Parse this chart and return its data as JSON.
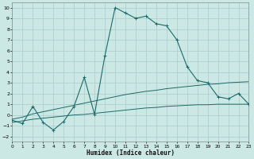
{
  "xlabel": "Humidex (Indice chaleur)",
  "bg_color": "#cce8e4",
  "grid_color": "#aacccc",
  "line_color": "#1a6b6b",
  "xlim": [
    0,
    23
  ],
  "ylim": [
    -2.5,
    10.5
  ],
  "xticks": [
    0,
    1,
    2,
    3,
    4,
    5,
    6,
    7,
    8,
    9,
    10,
    11,
    12,
    13,
    14,
    15,
    16,
    17,
    18,
    19,
    20,
    21,
    22,
    23
  ],
  "yticks": [
    -2,
    -1,
    0,
    1,
    2,
    3,
    4,
    5,
    6,
    7,
    8,
    9,
    10
  ],
  "curve1_x": [
    0,
    1,
    2,
    3,
    4,
    5,
    6,
    7,
    8,
    9,
    10,
    11,
    12,
    13,
    14,
    15,
    16,
    17,
    18,
    19,
    20,
    21,
    22,
    23
  ],
  "curve1_y": [
    -0.5,
    -0.8,
    0.8,
    -0.7,
    -1.4,
    -0.6,
    0.8,
    3.5,
    0.05,
    5.5,
    10.0,
    9.5,
    9.0,
    9.2,
    8.5,
    8.3,
    7.0,
    4.5,
    3.2,
    3.0,
    1.7,
    1.5,
    2.0,
    1.0
  ],
  "curve2_x": [
    0,
    1,
    2,
    3,
    4,
    5,
    6,
    7,
    8,
    9,
    10,
    11,
    12,
    13,
    14,
    15,
    16,
    17,
    18,
    19,
    20,
    21,
    22,
    23
  ],
  "curve2_y": [
    -0.4,
    -0.2,
    0.1,
    0.3,
    0.5,
    0.7,
    0.9,
    1.1,
    1.3,
    1.5,
    1.7,
    1.9,
    2.05,
    2.2,
    2.3,
    2.45,
    2.55,
    2.65,
    2.75,
    2.85,
    2.9,
    3.0,
    3.05,
    3.1
  ],
  "curve3_x": [
    0,
    1,
    2,
    3,
    4,
    5,
    6,
    7,
    8,
    9,
    10,
    11,
    12,
    13,
    14,
    15,
    16,
    17,
    18,
    19,
    20,
    21,
    22,
    23
  ],
  "curve3_y": [
    -0.7,
    -0.55,
    -0.4,
    -0.3,
    -0.2,
    -0.1,
    0.0,
    0.05,
    0.15,
    0.25,
    0.35,
    0.45,
    0.55,
    0.65,
    0.7,
    0.8,
    0.85,
    0.9,
    0.95,
    0.95,
    1.0,
    1.0,
    1.0,
    1.0
  ]
}
